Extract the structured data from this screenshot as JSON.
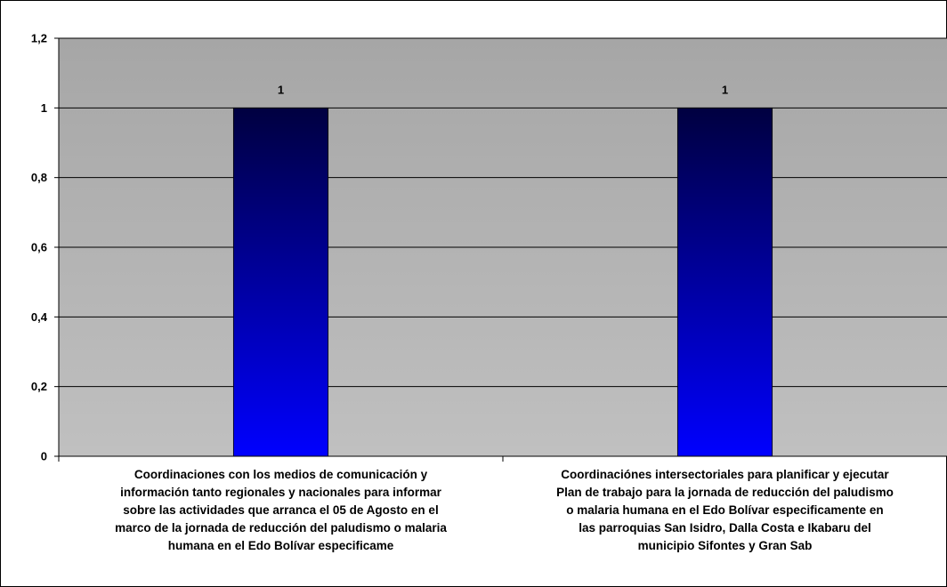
{
  "chart_data": {
    "type": "bar",
    "categories": [
      "Coordinaciones con los medios de comunicación y\ninformación tanto regionales y nacionales para informar\nsobre las actividades que arranca el 05 de Agosto en el\nmarco de la jornada de reducción del paludismo o malaria\nhumana  en el Edo Bolívar especificame",
      "Coordinaciónes intersectoriales para planificar y ejecutar\nPlan de trabajo para la jornada de reducción del paludismo\no malaria humana  en el Edo Bolívar especificamente en\nlas parroquias San Isidro, Dalla Costa e Ikabaru del\nmunicipio Sifontes y Gran Sab"
    ],
    "values": [
      1,
      1
    ],
    "data_labels": [
      "1",
      "1"
    ],
    "ylim": [
      0,
      1.2
    ],
    "yticks": [
      0,
      0.2,
      0.4,
      0.6,
      0.8,
      1,
      1.2
    ],
    "ytick_labels": [
      "0",
      "0,2",
      "0,4",
      "0,6",
      "0,8",
      "1",
      "1,2"
    ],
    "title": "",
    "xlabel": "",
    "ylabel": "",
    "grid": true,
    "legend": "none",
    "colors": {
      "plot_background_top": "#a6a6a6",
      "plot_background_bottom": "#c0c0c0",
      "bar_top": "#000040",
      "bar_bottom": "#0000ff",
      "gridline": "#000000"
    }
  }
}
